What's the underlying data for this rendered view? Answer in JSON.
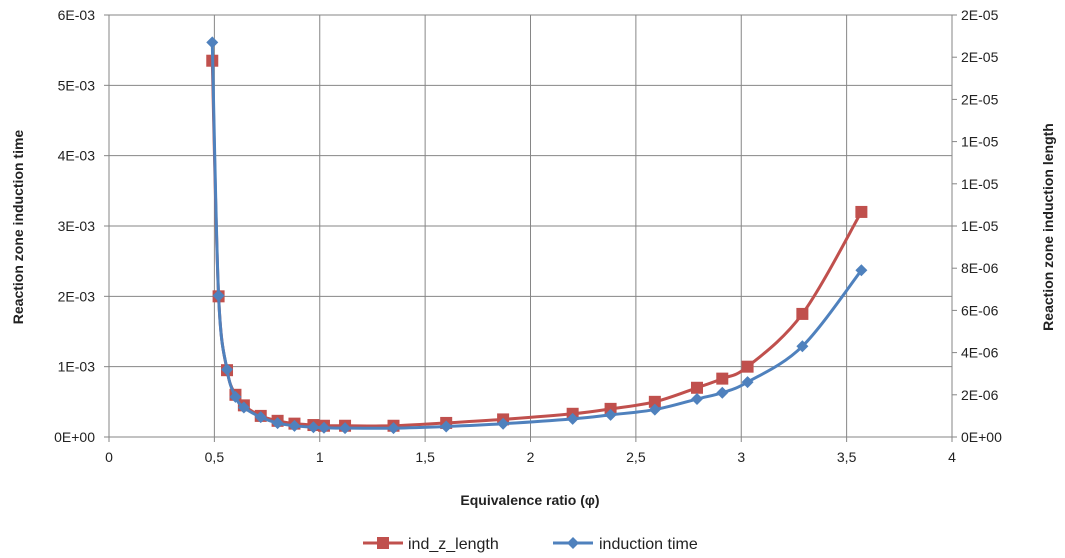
{
  "chart_data": {
    "type": "line",
    "xlabel": "Equivalence ratio (φ)",
    "ylabel_left": "Reaction zone induction time",
    "ylabel_right": "Reaction zone induction length",
    "xlim": [
      0,
      4
    ],
    "ylim_left": [
      0,
      0.006
    ],
    "ylim_right": [
      0,
      2e-05
    ],
    "x_ticks": [
      0,
      0.5,
      1,
      1.5,
      2,
      2.5,
      3,
      3.5,
      4
    ],
    "x_tick_labels": [
      "0",
      "0,5",
      "1",
      "1,5",
      "2",
      "2,5",
      "3",
      "3,5",
      "4"
    ],
    "y_left_ticks": [
      0,
      0.001,
      0.002,
      0.003,
      0.004,
      0.005,
      0.006
    ],
    "y_left_tick_labels": [
      "0E+00",
      "1E-03",
      "2E-03",
      "3E-03",
      "4E-03",
      "5E-03",
      "6E-03"
    ],
    "y_right_ticks": [
      0,
      2e-06,
      4e-06,
      6e-06,
      8e-06,
      1e-05,
      1.2e-05,
      1.4e-05,
      1.6e-05,
      1.8e-05,
      2e-05
    ],
    "y_right_tick_labels": [
      "0E+00",
      "2E-06",
      "4E-06",
      "6E-06",
      "8E-06",
      "1E-05",
      "1E-05",
      "1E-05",
      "2E-05",
      "2E-05",
      "2E-05"
    ],
    "grid": true,
    "legend_position": "bottom",
    "series": [
      {
        "name": "ind_z_length",
        "axis": "left",
        "color": "#C0504D",
        "marker": "square",
        "x": [
          0.49,
          0.52,
          0.56,
          0.6,
          0.64,
          0.72,
          0.8,
          0.88,
          0.97,
          1.02,
          1.12,
          1.35,
          1.6,
          1.87,
          2.2,
          2.38,
          2.59,
          2.79,
          2.91,
          3.03,
          3.29,
          3.57
        ],
        "y": [
          0.00535,
          0.002,
          0.00095,
          0.0006,
          0.00045,
          0.0003,
          0.00023,
          0.00019,
          0.00017,
          0.00016,
          0.00016,
          0.00016,
          0.0002,
          0.00025,
          0.00033,
          0.0004,
          0.0005,
          0.0007,
          0.00083,
          0.001,
          0.00175,
          0.0032
        ]
      },
      {
        "name": "induction time",
        "axis": "right",
        "color": "#4F81BD",
        "marker": "diamond",
        "x": [
          0.49,
          0.52,
          0.56,
          0.6,
          0.64,
          0.72,
          0.8,
          0.88,
          0.97,
          1.02,
          1.12,
          1.35,
          1.6,
          1.87,
          2.2,
          2.38,
          2.59,
          2.79,
          2.91,
          3.03,
          3.29,
          3.57
        ],
        "y": [
          1.87e-05,
          6.7e-06,
          3.2e-06,
          1.9e-06,
          1.4e-06,
          9.4e-07,
          6.6e-07,
          5.3e-07,
          4.6e-07,
          4.4e-07,
          4.2e-07,
          4.2e-07,
          5e-07,
          6.3e-07,
          8.6e-07,
          1.05e-06,
          1.3e-06,
          1.8e-06,
          2.1e-06,
          2.6e-06,
          4.3e-06,
          7.9e-06
        ]
      }
    ]
  }
}
